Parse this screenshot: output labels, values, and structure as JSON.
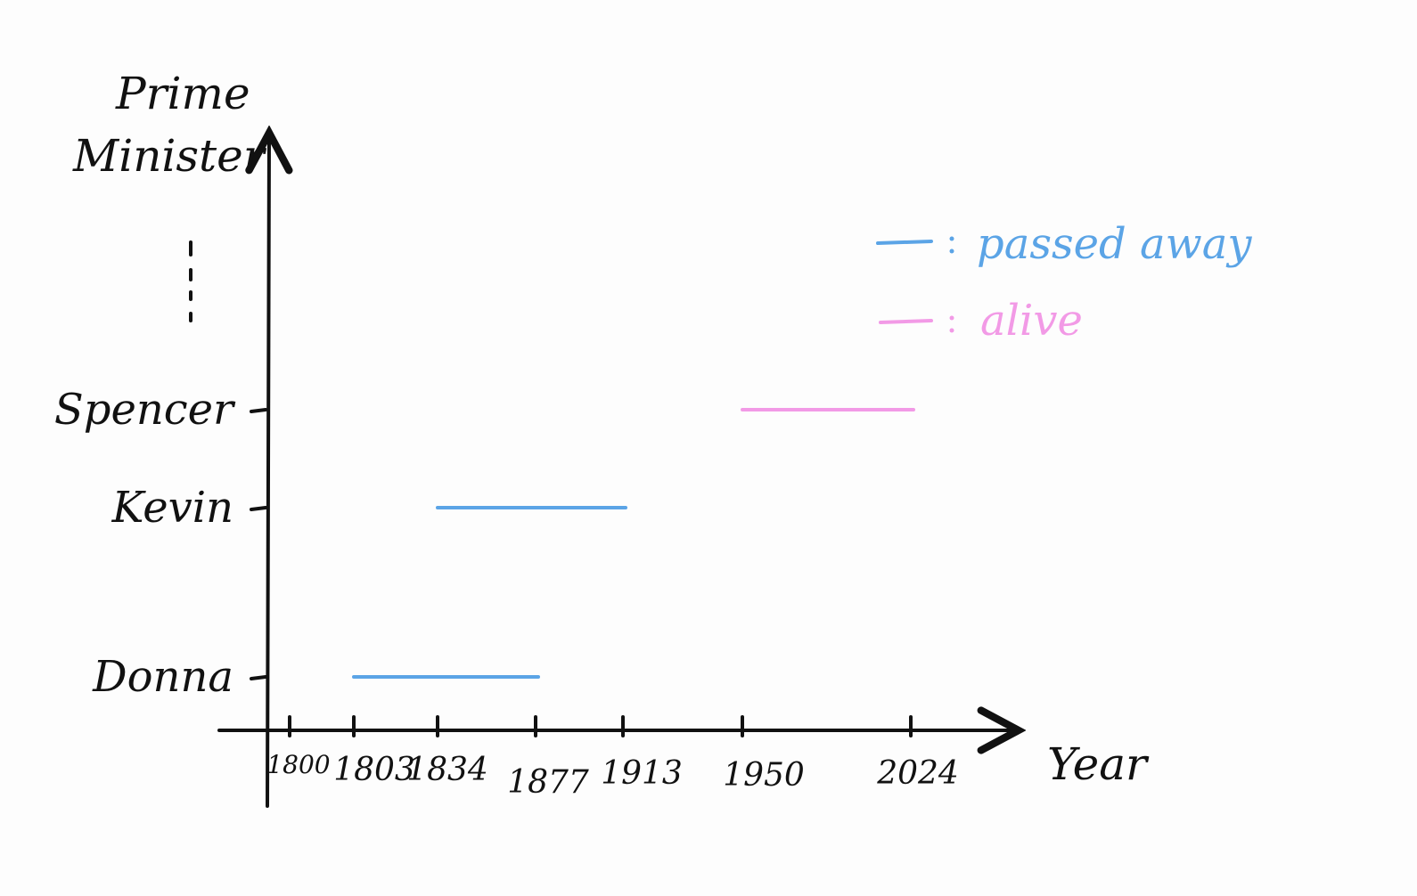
{
  "chart_data": {
    "type": "timeline",
    "title": "",
    "xlabel": "Year",
    "ylabel": "Prime Minister",
    "x_ticks": [
      1800,
      1803,
      1834,
      1877,
      1913,
      1950,
      2024
    ],
    "y_categories": [
      "Donna",
      "Kevin",
      "Spencer"
    ],
    "y_more_indicator": "⋮",
    "series": [
      {
        "name": "passed away",
        "color": "#5ba4e6",
        "intervals": [
          {
            "category": "Donna",
            "start": 1803,
            "end": 1877
          },
          {
            "category": "Kevin",
            "start": 1834,
            "end": 1913
          }
        ]
      },
      {
        "name": "alive",
        "color": "#f29ae6",
        "intervals": [
          {
            "category": "Spencer",
            "start": 1950,
            "end": 2024
          }
        ]
      }
    ],
    "legend": {
      "position": "top-right",
      "separator": ":",
      "items": [
        "passed away",
        "alive"
      ]
    },
    "grid": false
  }
}
